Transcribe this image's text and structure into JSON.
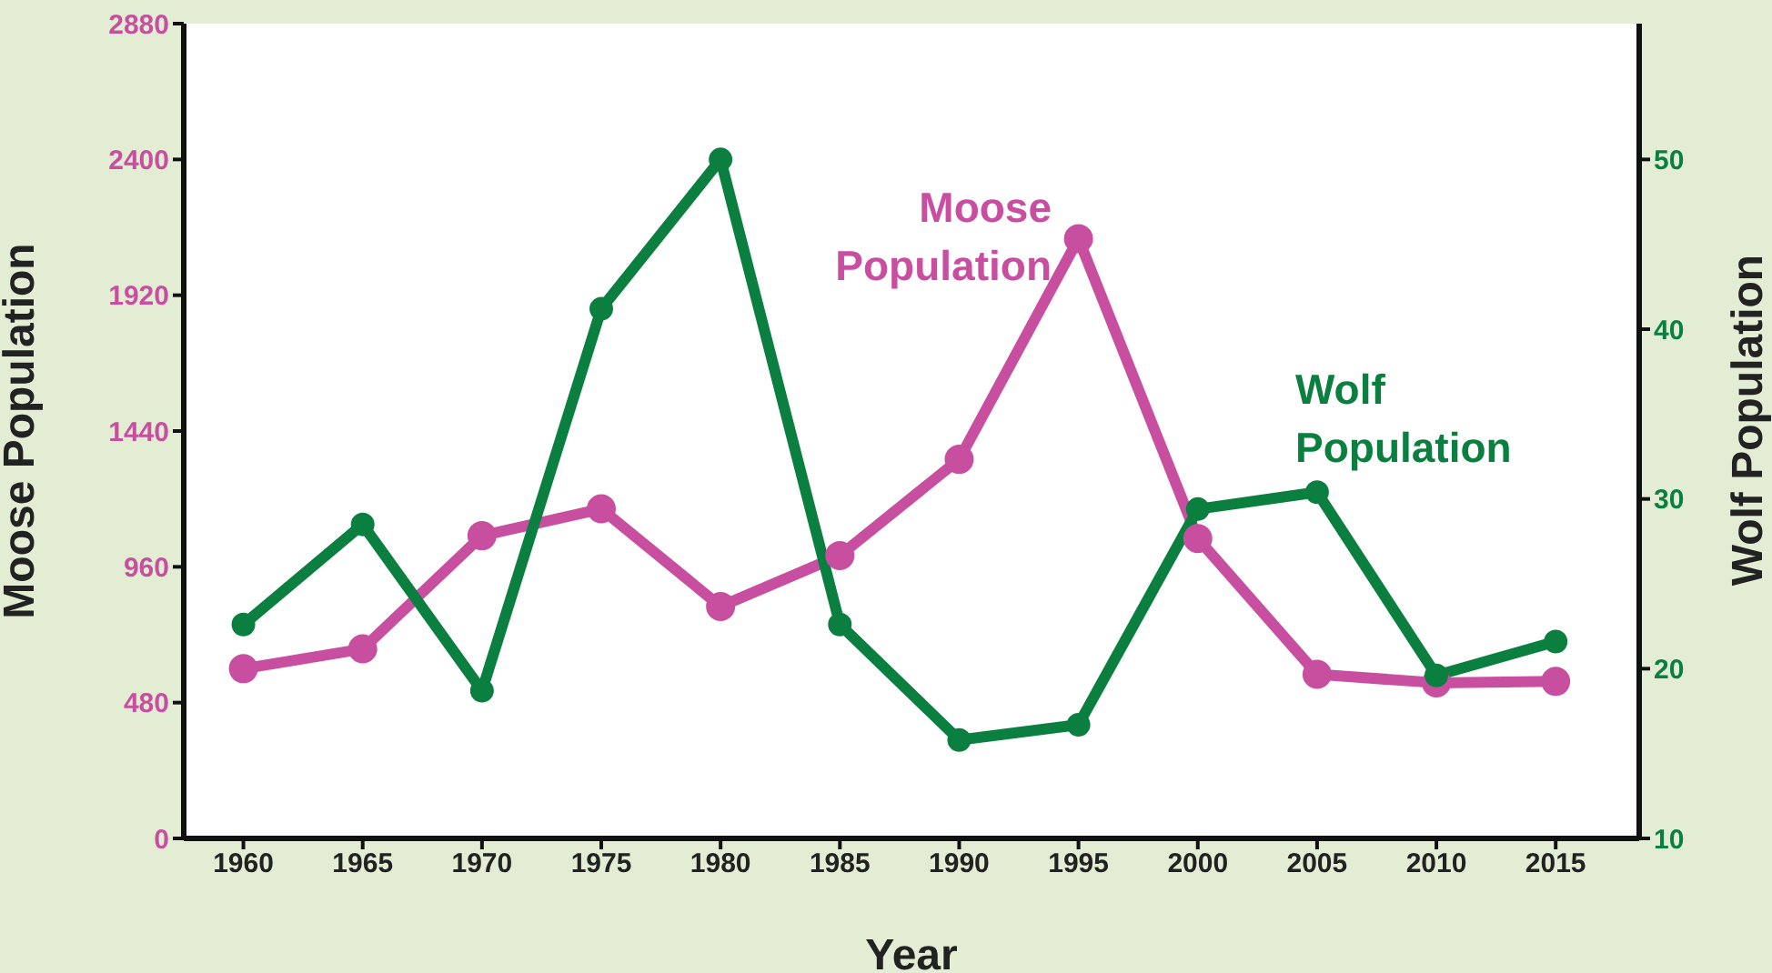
{
  "chart_data": {
    "type": "line",
    "xlabel": "Year",
    "ylabel": "Moose Population",
    "y2label": "Wolf Population",
    "x": [
      1960,
      1965,
      1970,
      1975,
      1980,
      1985,
      1990,
      1995,
      2000,
      2005,
      2010,
      2015
    ],
    "xlim": [
      1957.5,
      2018.5
    ],
    "xticks": [
      1960,
      1965,
      1970,
      1975,
      1980,
      1985,
      1990,
      1995,
      2000,
      2005,
      2010,
      2015
    ],
    "ylim": [
      0,
      2880
    ],
    "yticks": [
      0,
      480,
      960,
      1440,
      1920,
      2400,
      2880
    ],
    "y2lim": [
      10,
      58
    ],
    "y2ticks": [
      10,
      20,
      30,
      40,
      50
    ],
    "marker": "circle",
    "line_style": "solid",
    "series": [
      {
        "name": "Moose Population",
        "color": "#c84fa0",
        "values": [
          600,
          670,
          1070,
          1165,
          820,
          1000,
          1340,
          2120,
          1060,
          580,
          550,
          555
        ]
      },
      {
        "name": "Wolf Population",
        "color": "#0b7f3f",
        "axis": "y2",
        "values": [
          22.6,
          28.5,
          18.7,
          41.2,
          50,
          22.6,
          15.8,
          16.7,
          29.4,
          30.4,
          19.6,
          21.6
        ]
      }
    ]
  }
}
